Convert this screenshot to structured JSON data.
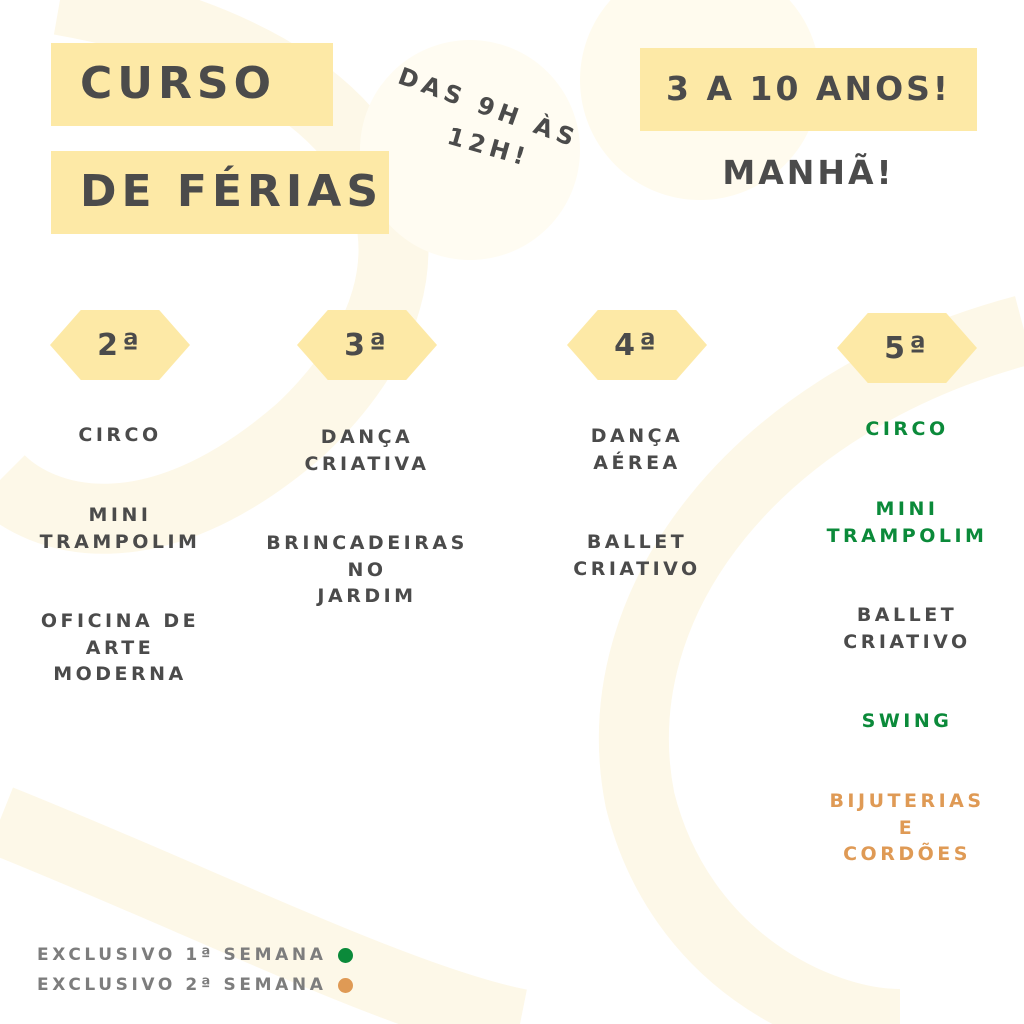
{
  "header": {
    "title_line1": "CURSO",
    "title_line2": "DE FÉRIAS",
    "schedule_line1": "DAS 9H ÀS",
    "schedule_line2": "12H!",
    "age_range": "3 A 10 ANOS!",
    "period": "MANHÃ!"
  },
  "colors": {
    "highlight": "#fde9a6",
    "text": "#4b4b4b",
    "week1": "#0b8a3a",
    "week2": "#df9a55"
  },
  "days": [
    {
      "label": "2ª",
      "activities": [
        {
          "text": "CIRCO",
          "week": ""
        },
        {
          "text": "MINI\nTRAMPOLIM",
          "week": ""
        },
        {
          "text": "OFICINA DE\nARTE\nMODERNA",
          "week": ""
        }
      ]
    },
    {
      "label": "3ª",
      "activities": [
        {
          "text": "DANÇA\nCRIATIVA",
          "week": ""
        },
        {
          "text": "BRINCADEIRAS\nNO\nJARDIM",
          "week": ""
        }
      ]
    },
    {
      "label": "4ª",
      "activities": [
        {
          "text": "DANÇA\nAÉREA",
          "week": ""
        },
        {
          "text": "BALLET\nCRIATIVO",
          "week": ""
        }
      ]
    },
    {
      "label": "5ª",
      "activities": [
        {
          "text": "CIRCO",
          "week": "1"
        },
        {
          "text": "MINI\nTRAMPOLIM",
          "week": "1"
        },
        {
          "text": "BALLET\nCRIATIVO",
          "week": ""
        },
        {
          "text": "SWING",
          "week": "1"
        },
        {
          "text": "BIJUTERIAS\nE\nCORDÕES",
          "week": "2"
        }
      ]
    }
  ],
  "legend": [
    {
      "label": "EXCLUSIVO 1ª SEMANA",
      "color": "#0b8a3a"
    },
    {
      "label": "EXCLUSIVO 2ª SEMANA",
      "color": "#df9a55"
    }
  ]
}
